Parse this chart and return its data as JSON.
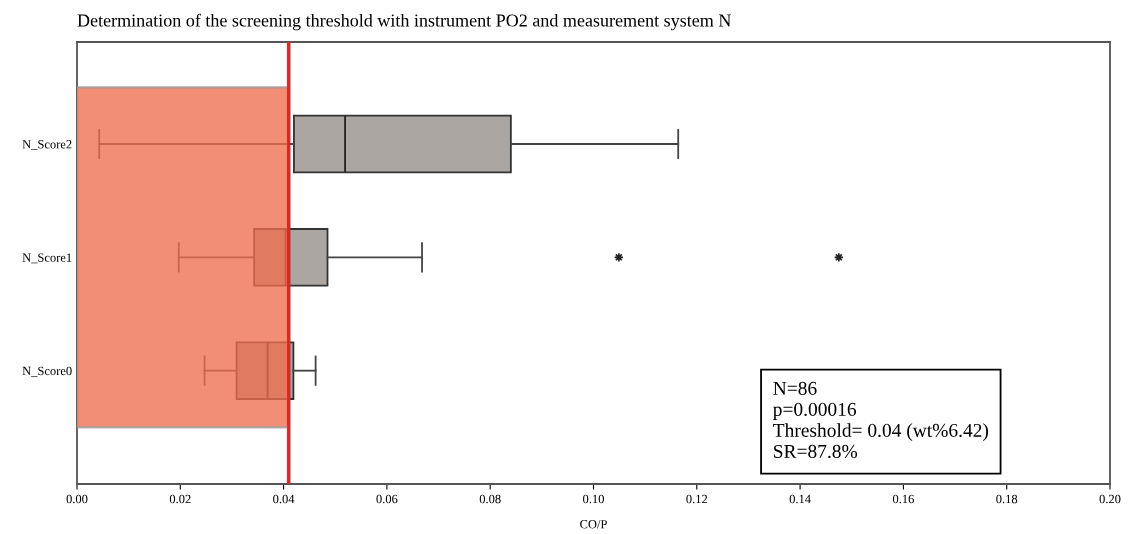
{
  "chart_data": {
    "type": "box",
    "orientation": "horizontal",
    "title": "Determination of the screening threshold with instrument PO2 and measurement system N",
    "xlabel": "CO/P",
    "categories": [
      "N_Score2",
      "N_Score1",
      "N_Score0"
    ],
    "series": [
      {
        "color": "#aba6a2",
        "boxes": [
          {
            "low": 0.0043,
            "q1": 0.042,
            "median": 0.0519,
            "q3": 0.084,
            "high": 0.1164
          },
          {
            "low": 0.0197,
            "q1": 0.0343,
            "median": 0.0404,
            "q3": 0.0485,
            "high": 0.0668,
            "outliers": [
              0.1049,
              0.1475
            ]
          },
          {
            "low": 0.0247,
            "q1": 0.0309,
            "median": 0.0369,
            "q3": 0.0419,
            "high": 0.0462
          }
        ]
      }
    ],
    "xlim": [
      0,
      0.2
    ],
    "xticks": [
      {
        "value": 0,
        "label": "0.00"
      },
      {
        "value": 0.02,
        "label": "0.02"
      },
      {
        "value": 0.04,
        "label": "0.04"
      },
      {
        "value": 0.06,
        "label": "0.06"
      },
      {
        "value": 0.08,
        "label": "0.08"
      },
      {
        "value": 0.1,
        "label": "0.10"
      },
      {
        "value": 0.12,
        "label": "0.12"
      },
      {
        "value": 0.14,
        "label": "0.14"
      },
      {
        "value": 0.16,
        "label": "0.16"
      },
      {
        "value": 0.18,
        "label": "0.18"
      },
      {
        "value": 0.2,
        "label": "0.20"
      }
    ],
    "ref_lines": [
      {
        "axis": "x",
        "value": 0.041,
        "color": "#e8231f"
      }
    ],
    "bands": [
      {
        "axis": "x",
        "from": 0,
        "to": 0.041,
        "color": "#ee6e4e"
      }
    ],
    "annotations": [
      "N=86",
      "p=0.00016",
      "Threshold= 0.04 (wt%6.42)",
      "SR=87.8%"
    ],
    "grid": false,
    "legend": false
  }
}
